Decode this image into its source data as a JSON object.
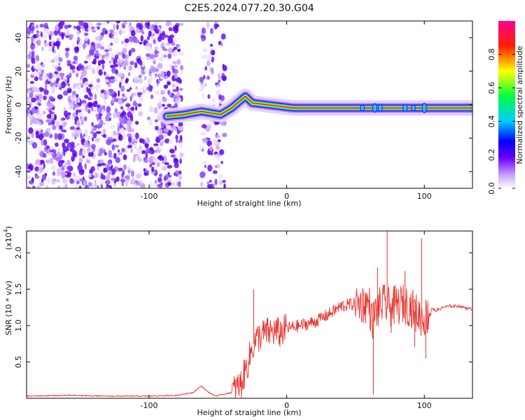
{
  "title": "C2E5.2024.077.20.30.G04",
  "chart_data": [
    {
      "type": "heatmap",
      "name": "spectrogram",
      "xlabel": "Height of straight line (km)",
      "ylabel": "Frequency (Hz)",
      "xlim": [
        -189,
        135
      ],
      "ylim": [
        -50,
        50
      ],
      "xticks": [
        -100,
        0,
        100
      ],
      "yticks": [
        -40,
        -20,
        0,
        20,
        40
      ],
      "colorbar": {
        "label": "Normalized spectral amplitude",
        "range": [
          0,
          1
        ],
        "ticks": [
          0.0,
          0.2,
          0.4,
          0.6,
          0.8
        ],
        "colormap": [
          "#ffffff",
          "#8000ff",
          "#0000ff",
          "#00ffff",
          "#00ff00",
          "#ffff00",
          "#ff0000",
          "#ff00a0"
        ]
      },
      "noise_gaps_km": [
        [
          -76,
          -62
        ],
        [
          -45,
          -40
        ]
      ],
      "ridge": [
        {
          "x": -87,
          "y": -7
        },
        {
          "x": -75,
          "y": -6
        },
        {
          "x": -62,
          "y": -4
        },
        {
          "x": -48,
          "y": -6
        },
        {
          "x": -40,
          "y": -2
        },
        {
          "x": -30,
          "y": 5
        },
        {
          "x": -25,
          "y": 1
        },
        {
          "x": -15,
          "y": 0
        },
        {
          "x": -5,
          "y": -1
        },
        {
          "x": 5,
          "y": -2
        },
        {
          "x": 30,
          "y": -2
        },
        {
          "x": 60,
          "y": -2
        },
        {
          "x": 100,
          "y": -2
        },
        {
          "x": 135,
          "y": -2
        }
      ]
    },
    {
      "type": "line",
      "name": "snr",
      "xlabel": "Height of straight line (km)",
      "ylabel": "SNR (10 * v/v)",
      "yscale_label": "(x10",
      "yscale_exp": "4",
      "xlim": [
        -189,
        135
      ],
      "ylim": [
        0,
        2.3
      ],
      "xticks": [
        -100,
        0,
        100
      ],
      "yticks": [
        0.5,
        1.0,
        1.5,
        2.0
      ],
      "ytick_labels": [
        "0.5",
        "1.0",
        "1.5",
        "2.0"
      ],
      "color": "#e8302a",
      "series": [
        {
          "x": [
            -189,
            -160,
            -130,
            -100,
            -80,
            -68,
            -62,
            -58,
            -52,
            -40,
            -33,
            -28,
            -24,
            -20,
            -15,
            -10,
            -5,
            0,
            10,
            20,
            30,
            40,
            50,
            60,
            62,
            65,
            70,
            75,
            80,
            85,
            90,
            95,
            100,
            103,
            105,
            108,
            115,
            125,
            135
          ],
          "y": [
            0.03,
            0.04,
            0.03,
            0.03,
            0.04,
            0.08,
            0.17,
            0.1,
            0.03,
            0.08,
            0.2,
            0.5,
            0.75,
            0.85,
            0.9,
            0.92,
            0.9,
            0.96,
            1.0,
            1.05,
            1.15,
            1.27,
            1.3,
            1.3,
            1.05,
            1.2,
            1.3,
            1.25,
            1.28,
            1.3,
            1.26,
            1.15,
            1.1,
            1.15,
            1.25,
            1.2,
            1.26,
            1.27,
            1.22
          ]
        }
      ],
      "spikes": [
        {
          "x": -24,
          "y": 1.5
        },
        {
          "x": 63,
          "y": 0.05
        },
        {
          "x": 66,
          "y": 1.8
        },
        {
          "x": 73,
          "y": 2.3
        },
        {
          "x": 76,
          "y": 0.9
        },
        {
          "x": 86,
          "y": 1.75
        },
        {
          "x": 98,
          "y": 2.2
        },
        {
          "x": 101,
          "y": 0.55
        },
        {
          "x": 93,
          "y": 0.7
        }
      ]
    }
  ]
}
